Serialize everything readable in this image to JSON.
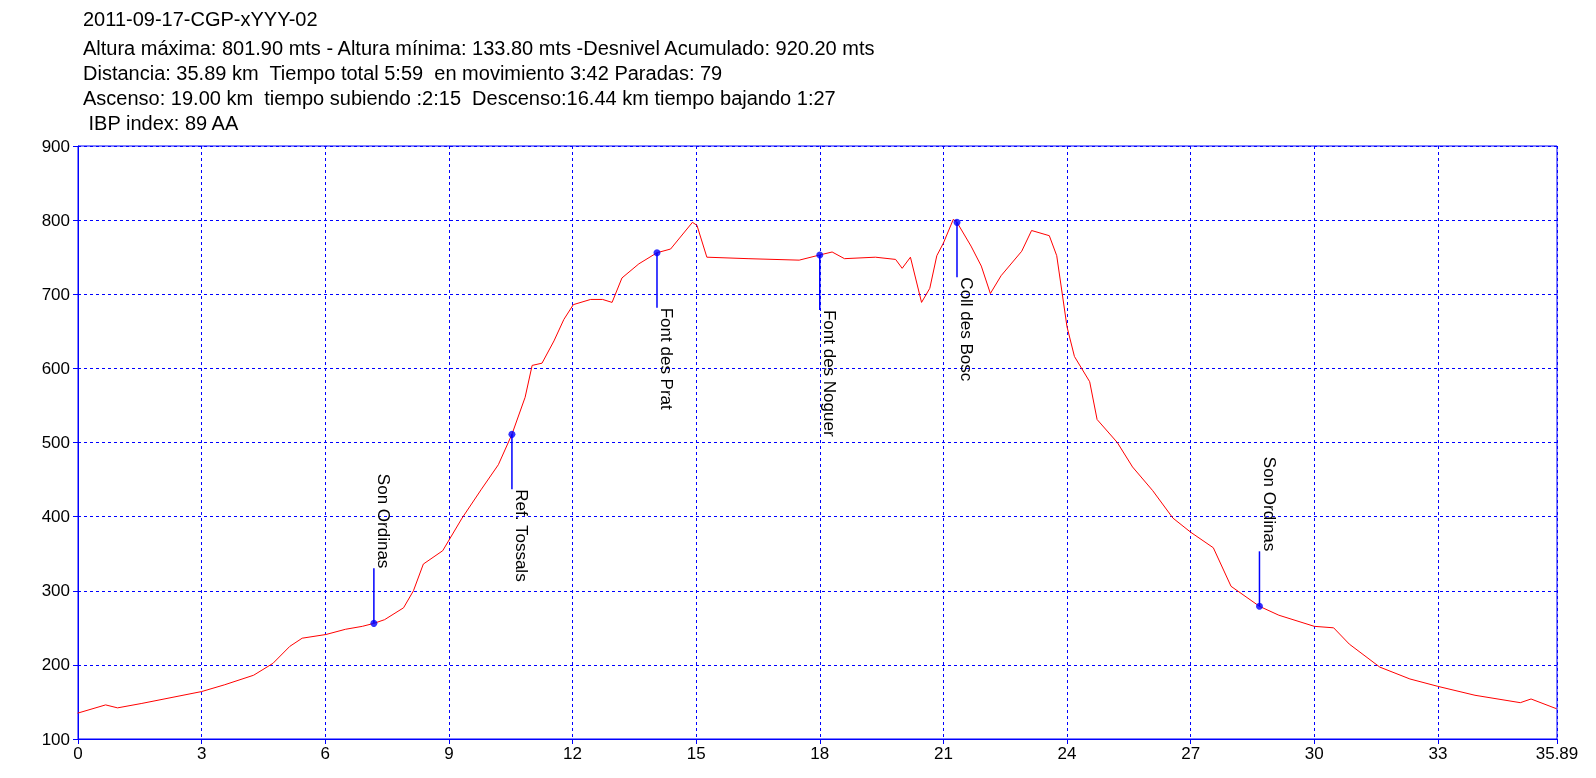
{
  "chart_data": {
    "type": "line",
    "title": "2011-09-17-CGP-xYYY-02",
    "subtitle": "Altura máxima: 801.90 mts - Altura mínima: 133.80 mts -Desnivel Acumulado: 920.20 mts\nDistancia: 35.89 km  Tiempo total 5:59  en movimiento 3:42 Paradas: 79\nAscenso: 19.00 km  tiempo subiendo :2:15  Descenso:16.44 km tiempo bajando 1:27\n IBP index: 89 AA",
    "x": [
      0,
      0.67,
      0.96,
      1.55,
      3,
      3.55,
      4.26,
      4.73,
      5.14,
      5.44,
      6.02,
      6.49,
      6.9,
      7.18,
      7.44,
      7.9,
      8.14,
      8.38,
      8.85,
      9.32,
      9.79,
      10.2,
      10.53,
      10.85,
      11.02,
      11.26,
      11.55,
      11.79,
      12.02,
      12.44,
      12.73,
      12.96,
      13.2,
      13.61,
      14.05,
      14.38,
      14.91,
      15.02,
      15.26,
      16.26,
      17.5,
      18,
      18.3,
      18.6,
      19.35,
      19.84,
      20,
      20.2,
      20.47,
      20.67,
      20.84,
      21,
      21.24,
      21.33,
      21.67,
      21.92,
      22.14,
      22.4,
      22.9,
      23.14,
      23.57,
      23.75,
      24,
      24.18,
      24.55,
      24.73,
      25.22,
      25.59,
      26.08,
      26.57,
      27,
      27.55,
      27.98,
      28.67,
      29.14,
      30,
      30.47,
      30.85,
      31.59,
      32.32,
      33,
      33.9,
      35,
      35.26,
      35.87
    ],
    "series": [
      {
        "color": "#ff0000",
        "values": [
          135,
          146,
          142,
          148,
          164,
          173,
          186,
          202,
          225,
          236,
          241,
          248,
          252,
          256,
          261,
          277,
          300,
          336,
          354,
          398,
          437,
          470,
          511,
          561,
          604,
          607,
          637,
          666,
          686,
          693,
          693,
          689,
          722,
          741,
          756,
          761,
          797,
          793,
          750,
          748,
          746,
          753,
          757,
          748,
          750,
          747,
          735,
          750,
          689,
          708,
          752,
          769,
          801,
          797,
          765,
          738,
          701,
          725,
          758,
          786,
          779,
          752,
          656,
          616,
          582,
          531,
          500,
          467,
          435,
          398,
          379,
          358,
          306,
          279,
          267,
          252,
          250,
          228,
          197,
          181,
          171,
          159,
          149,
          154,
          141
        ]
      }
    ],
    "xlim": [
      0,
      35.89
    ],
    "xticks": [
      0,
      3,
      6,
      9,
      12,
      15,
      18,
      21,
      24,
      27,
      30,
      33,
      35.89
    ],
    "ylim": [
      100,
      900
    ],
    "yticks": [
      100,
      200,
      300,
      400,
      500,
      600,
      700,
      800,
      900
    ],
    "grid": true,
    "line_style": "solid",
    "marker": "none",
    "annotations": [
      {
        "text": "Son Ordinas",
        "x": 7.18,
        "y": 256
      },
      {
        "text": "Ref. Tossals",
        "x": 10.53,
        "y": 511
      },
      {
        "text": "Font des Prat",
        "x": 14.05,
        "y": 756
      },
      {
        "text": "Font des Noguer",
        "x": 18,
        "y": 753
      },
      {
        "text": "Coll des Bosc",
        "x": 21.33,
        "y": 797
      },
      {
        "text": "Son Ordinas",
        "x": 28.67,
        "y": 279
      }
    ]
  }
}
